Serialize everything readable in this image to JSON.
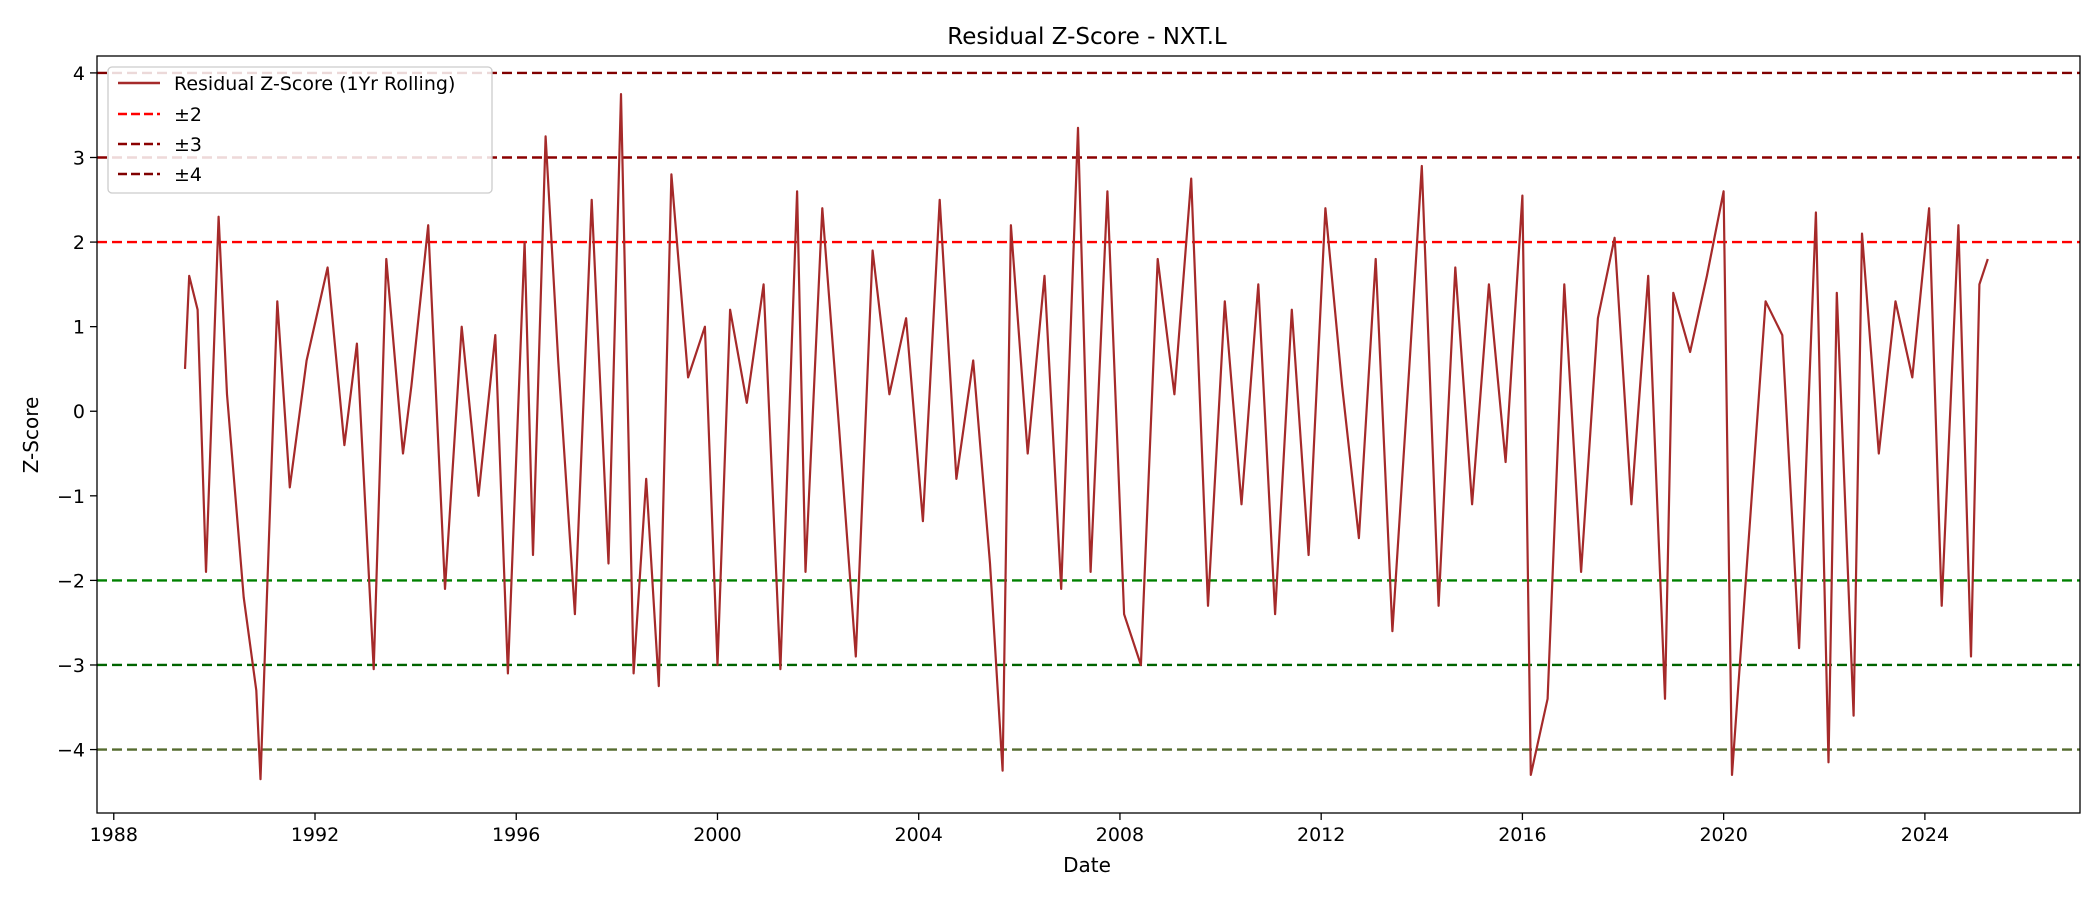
{
  "chart_data": {
    "type": "line",
    "title": "Residual Z-Score - NXT.L",
    "xlabel": "Date",
    "ylabel": "Z-Score",
    "x_range": [
      "1987-09",
      "2027-02"
    ],
    "ylim": [
      -4.75,
      4.2
    ],
    "x_ticks": [
      "1988",
      "1992",
      "1996",
      "2000",
      "2004",
      "2008",
      "2012",
      "2016",
      "2020",
      "2024"
    ],
    "y_ticks": [
      "4",
      "3",
      "2",
      "1",
      "0",
      "−1",
      "−2",
      "−3",
      "−4"
    ],
    "grid": false,
    "legend_position": "top-left",
    "series": [
      {
        "name": "Residual Z-Score (1Yr Rolling)",
        "color": "#a52a2a",
        "x": [
          "1989-06",
          "1989-07",
          "1989-09",
          "1989-11",
          "1990-02",
          "1990-04",
          "1990-08",
          "1990-11",
          "1990-12",
          "1991-04",
          "1991-07",
          "1991-11",
          "1992-04",
          "1992-08",
          "1992-11",
          "1993-03",
          "1993-06",
          "1993-10",
          "1993-12",
          "1994-04",
          "1994-08",
          "1994-12",
          "1995-04",
          "1995-08",
          "1995-11",
          "1996-03",
          "1996-05",
          "1996-08",
          "1996-11",
          "1997-03",
          "1997-07",
          "1997-11",
          "1998-02",
          "1998-05",
          "1998-08",
          "1998-11",
          "1999-02",
          "1999-06",
          "1999-10",
          "2000-01",
          "2000-04",
          "2000-08",
          "2000-12",
          "2001-04",
          "2001-08",
          "2001-10",
          "2002-02",
          "2002-06",
          "2002-10",
          "2003-02",
          "2003-06",
          "2003-10",
          "2004-02",
          "2004-06",
          "2004-10",
          "2005-02",
          "2005-06",
          "2005-09",
          "2005-11",
          "2006-03",
          "2006-07",
          "2006-11",
          "2007-03",
          "2007-06",
          "2007-10",
          "2008-02",
          "2008-06",
          "2008-10",
          "2009-02",
          "2009-06",
          "2009-10",
          "2010-02",
          "2010-06",
          "2010-10",
          "2011-02",
          "2011-06",
          "2011-10",
          "2012-02",
          "2012-06",
          "2012-10",
          "2013-02",
          "2013-06",
          "2013-10",
          "2014-01",
          "2014-05",
          "2014-09",
          "2015-01",
          "2015-05",
          "2015-09",
          "2016-01",
          "2016-03",
          "2016-07",
          "2016-11",
          "2017-03",
          "2017-07",
          "2017-11",
          "2018-03",
          "2018-07",
          "2018-11",
          "2019-01",
          "2019-05",
          "2019-09",
          "2020-01",
          "2020-03",
          "2020-07",
          "2020-11",
          "2021-03",
          "2021-07",
          "2021-11",
          "2022-02",
          "2022-04",
          "2022-08",
          "2022-10",
          "2023-02",
          "2023-06",
          "2023-10",
          "2024-02",
          "2024-05",
          "2024-09",
          "2024-12",
          "2025-02",
          "2025-04"
        ],
        "y": [
          0.5,
          1.6,
          1.2,
          -1.9,
          2.3,
          0.2,
          -2.2,
          -3.3,
          -4.35,
          1.3,
          -0.9,
          0.6,
          1.7,
          -0.4,
          0.8,
          -3.05,
          1.8,
          -0.5,
          0.3,
          2.2,
          -2.1,
          1.0,
          -1.0,
          0.9,
          -3.1,
          2.0,
          -1.7,
          3.25,
          0.6,
          -2.4,
          2.5,
          -1.8,
          3.75,
          -3.1,
          -0.8,
          -3.25,
          2.8,
          0.4,
          1.0,
          -3.0,
          1.2,
          0.1,
          1.5,
          -3.05,
          2.6,
          -1.9,
          2.4,
          -0.2,
          -2.9,
          1.9,
          0.2,
          1.1,
          -1.3,
          2.5,
          -0.8,
          0.6,
          -1.8,
          -4.25,
          2.2,
          -0.5,
          1.6,
          -2.1,
          3.35,
          -1.9,
          2.6,
          -2.4,
          -3.0,
          1.8,
          0.2,
          2.75,
          -2.3,
          1.3,
          -1.1,
          1.5,
          -2.4,
          1.2,
          -1.7,
          2.4,
          0.3,
          -1.5,
          1.8,
          -2.6,
          0.5,
          2.9,
          -2.3,
          1.7,
          -1.1,
          1.5,
          -0.6,
          2.55,
          -4.3,
          -3.4,
          1.5,
          -1.9,
          1.1,
          2.05,
          -1.1,
          1.6,
          -3.4,
          1.4,
          0.7,
          1.6,
          2.6,
          -4.3,
          -1.5,
          1.3,
          0.9,
          -2.8,
          2.35,
          -4.15,
          1.4,
          -3.6,
          2.1,
          -0.5,
          1.3,
          0.4,
          2.4,
          -2.3,
          2.2,
          -2.9,
          1.5,
          1.8
        ]
      }
    ],
    "reference_lines": [
      {
        "label": "±2",
        "levels": [
          2,
          -2
        ],
        "colors": [
          "#ff0000",
          "#008000"
        ]
      },
      {
        "label": "±3",
        "levels": [
          3,
          -3
        ],
        "colors": [
          "#8b0000",
          "#006400"
        ]
      },
      {
        "label": "±4",
        "levels": [
          4,
          -4
        ],
        "colors": [
          "#800000",
          "#556b2f"
        ]
      }
    ],
    "legend": [
      "Residual Z-Score (1Yr Rolling)",
      "±2",
      "±3",
      "±4"
    ]
  }
}
